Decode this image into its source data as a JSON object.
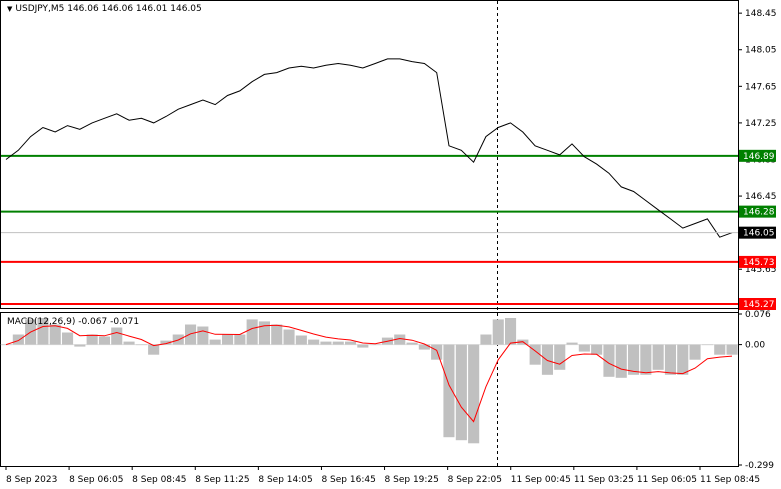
{
  "symbol_bar": {
    "arrow_icon": "triangle-down-icon",
    "text": "USDJPY,M5  146.06 146.06 146.01 146.05"
  },
  "price_axis": {
    "ticks": [
      "148.45",
      "148.05",
      "147.65",
      "147.25",
      "146.85",
      "146.45",
      "146.05",
      "145.65"
    ]
  },
  "levels": [
    {
      "label": "146.89",
      "color": "#008000"
    },
    {
      "label": "146.28",
      "color": "#008000"
    },
    {
      "label": "145.73",
      "color": "#ff0000"
    },
    {
      "label": "145.27",
      "color": "#ff0000"
    }
  ],
  "current_price": {
    "label": "146.05",
    "color": "#000000"
  },
  "macd": {
    "title": "MACD(12,26,9) -0.067 -0.071",
    "ticks": [
      "0.076",
      "0.00",
      "-0.299"
    ],
    "histogram_color": "#c0c0c0",
    "signal_color": "#ff0000"
  },
  "time_axis": {
    "labels": [
      "8 Sep 2023",
      "8 Sep 06:05",
      "8 Sep 08:45",
      "8 Sep 11:25",
      "8 Sep 14:05",
      "8 Sep 16:45",
      "8 Sep 19:25",
      "8 Sep 22:05",
      "11 Sep 00:45",
      "11 Sep 03:25",
      "11 Sep 06:05",
      "11 Sep 08:45"
    ]
  },
  "chart_data": {
    "type": "line",
    "price_ylim": [
      145.27,
      148.55
    ],
    "macd_ylim": [
      -0.299,
      0.076
    ],
    "series": [
      {
        "values": [
          146.85,
          146.95,
          147.1,
          147.2,
          147.15,
          147.22,
          147.18,
          147.25,
          147.3,
          147.35,
          147.28,
          147.3,
          147.25,
          147.32,
          147.4,
          147.45,
          147.5,
          147.45,
          147.55,
          147.6,
          147.7,
          147.78,
          147.8,
          147.85,
          147.87,
          147.85,
          147.88,
          147.9,
          147.88,
          147.85,
          147.9,
          147.95,
          147.95,
          147.92,
          147.9,
          147.8,
          147.0,
          146.95,
          146.82,
          147.1,
          147.2,
          147.25,
          147.15,
          147.0,
          146.95,
          146.9,
          147.02,
          146.88,
          146.8,
          146.7,
          146.55,
          146.5,
          146.4,
          146.3,
          146.2,
          146.1,
          146.15,
          146.2,
          146.0,
          146.05
        ]
      }
    ],
    "vertical_marker_at": "8 Sep 22:05"
  }
}
